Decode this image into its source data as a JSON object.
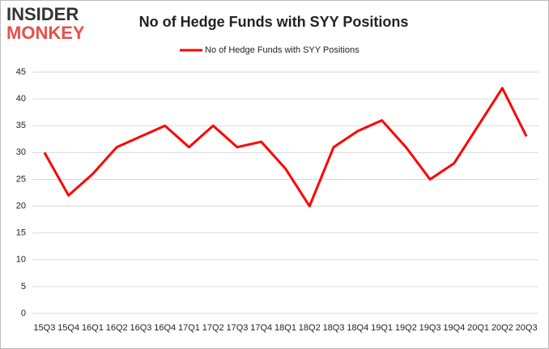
{
  "logo": {
    "line1": "INSIDER",
    "line2": "MONKEY"
  },
  "chart_data": {
    "type": "line",
    "title": "No of Hedge Funds with SYY Positions",
    "categories": [
      "15Q3",
      "15Q4",
      "16Q1",
      "16Q2",
      "16Q3",
      "16Q4",
      "17Q1",
      "17Q2",
      "17Q3",
      "17Q4",
      "18Q1",
      "18Q2",
      "18Q3",
      "18Q4",
      "19Q1",
      "19Q2",
      "19Q3",
      "19Q4",
      "20Q1",
      "20Q2",
      "20Q3"
    ],
    "series": [
      {
        "name": "No of Hedge Funds with SYY Positions",
        "color": "#ff0000",
        "values": [
          30,
          22,
          26,
          31,
          33,
          35,
          31,
          35,
          31,
          32,
          27,
          20,
          31,
          34,
          36,
          31,
          25,
          28,
          35,
          42,
          33
        ]
      }
    ],
    "ylim": [
      0,
      45
    ],
    "yticks": [
      0,
      5,
      10,
      15,
      20,
      25,
      30,
      35,
      40,
      45
    ],
    "grid": true,
    "legend": "top"
  }
}
